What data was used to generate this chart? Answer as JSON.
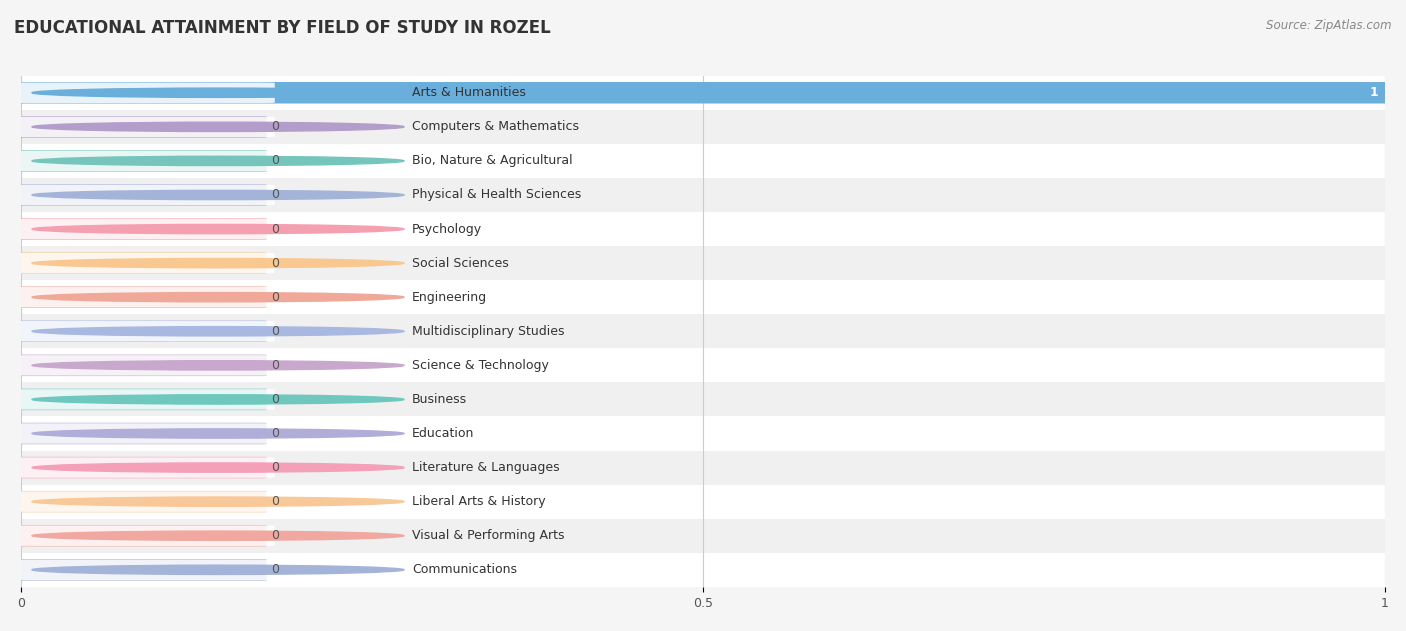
{
  "title": "EDUCATIONAL ATTAINMENT BY FIELD OF STUDY IN ROZEL",
  "source": "Source: ZipAtlas.com",
  "categories": [
    "Arts & Humanities",
    "Computers & Mathematics",
    "Bio, Nature & Agricultural",
    "Physical & Health Sciences",
    "Psychology",
    "Social Sciences",
    "Engineering",
    "Multidisciplinary Studies",
    "Science & Technology",
    "Business",
    "Education",
    "Literature & Languages",
    "Liberal Arts & History",
    "Visual & Performing Arts",
    "Communications"
  ],
  "values": [
    1,
    0,
    0,
    0,
    0,
    0,
    0,
    0,
    0,
    0,
    0,
    0,
    0,
    0,
    0
  ],
  "bar_colors": [
    "#6aaedb",
    "#b39dca",
    "#76c5bc",
    "#a4b4d8",
    "#f4a0b0",
    "#f8c890",
    "#f0a898",
    "#a8b8e0",
    "#c8a8cc",
    "#6ec8be",
    "#b0aed8",
    "#f4a0b8",
    "#f8c898",
    "#f0a8a0",
    "#a4b4d8"
  ],
  "xlim_max": 1.0,
  "xticks": [
    0,
    0.5,
    1
  ],
  "xtick_labels": [
    "0",
    "0.5",
    "1"
  ],
  "row_colors": [
    "#ffffff",
    "#f0f0f0"
  ],
  "grid_color": "#cccccc",
  "background_color": "#f5f5f5",
  "title_fontsize": 12,
  "label_fontsize": 9,
  "value_fontsize": 9
}
